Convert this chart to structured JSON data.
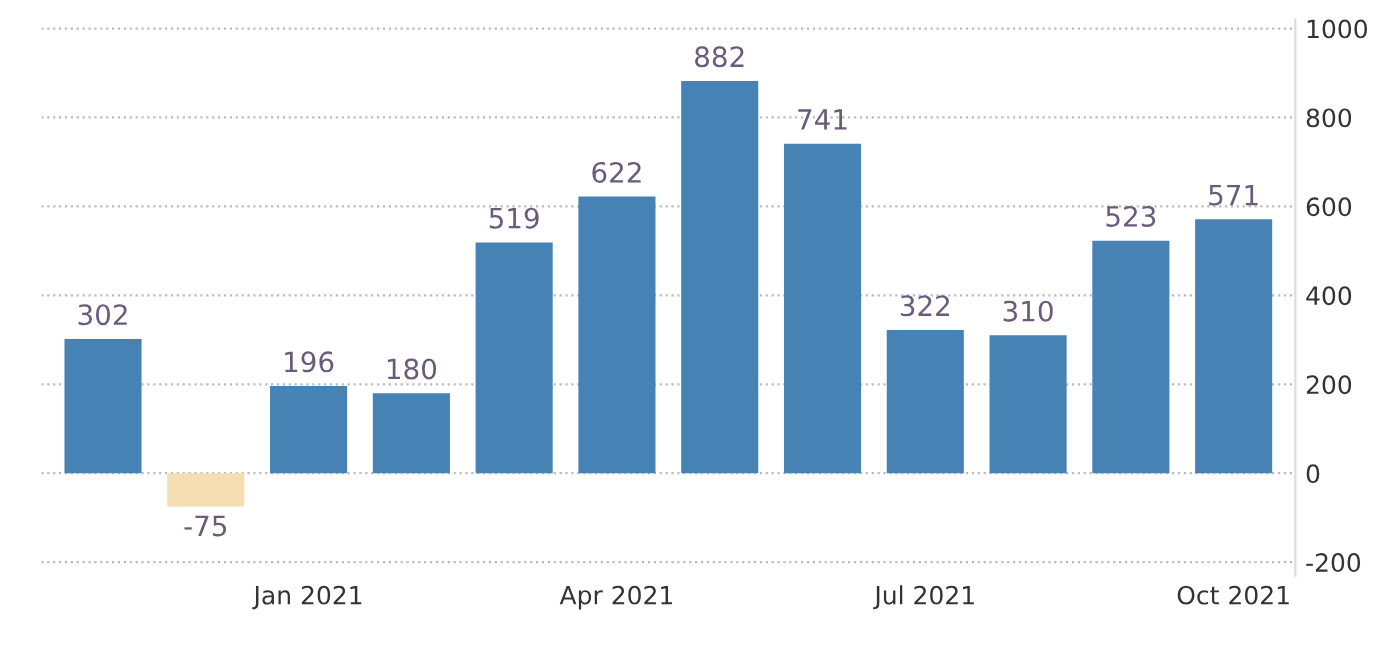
{
  "chart_data": {
    "type": "bar",
    "categories": [
      null,
      null,
      "Jan 2021",
      null,
      null,
      "Apr 2021",
      null,
      null,
      "Jul 2021",
      null,
      null,
      "Oct 2021"
    ],
    "values": [
      302,
      -75,
      196,
      180,
      519,
      622,
      882,
      741,
      322,
      310,
      523,
      571
    ],
    "colors": [
      "#4682b4",
      "#f5deb3",
      "#4682b4",
      "#4682b4",
      "#4682b4",
      "#4682b4",
      "#4682b4",
      "#4682b4",
      "#4682b4",
      "#4682b4",
      "#4682b4",
      "#4682b4"
    ],
    "ylim": [
      -230,
      1020
    ],
    "yticks": [
      -200,
      0,
      200,
      400,
      600,
      800,
      1000
    ],
    "grid": "y",
    "data_labels": true
  }
}
